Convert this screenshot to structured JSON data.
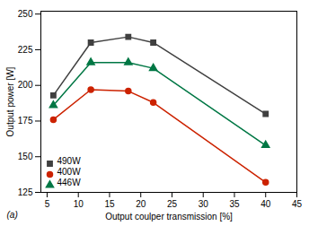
{
  "chart_data": {
    "type": "line",
    "xlabel": "Output coulper transmission [%]",
    "ylabel": "Output power [W]",
    "annotation": "(a)",
    "x": [
      6,
      12,
      18,
      22,
      40
    ],
    "series": [
      {
        "name": "490W",
        "color": "#404040",
        "marker": "square",
        "values": [
          193,
          230,
          234,
          230,
          180
        ]
      },
      {
        "name": "400W",
        "color": "#cc2200",
        "marker": "circle",
        "values": [
          176,
          197,
          196,
          188,
          132
        ]
      },
      {
        "name": "446W",
        "color": "#007744",
        "marker": "triangle",
        "values": [
          186,
          216,
          216,
          212,
          158
        ]
      }
    ],
    "xlim": [
      4,
      45
    ],
    "ylim": [
      125,
      252
    ],
    "xticks": [
      5,
      10,
      15,
      20,
      25,
      30,
      35,
      40,
      45
    ],
    "yticks": [
      125,
      150,
      175,
      200,
      225,
      250
    ],
    "legend": "lower left",
    "grid": false
  }
}
